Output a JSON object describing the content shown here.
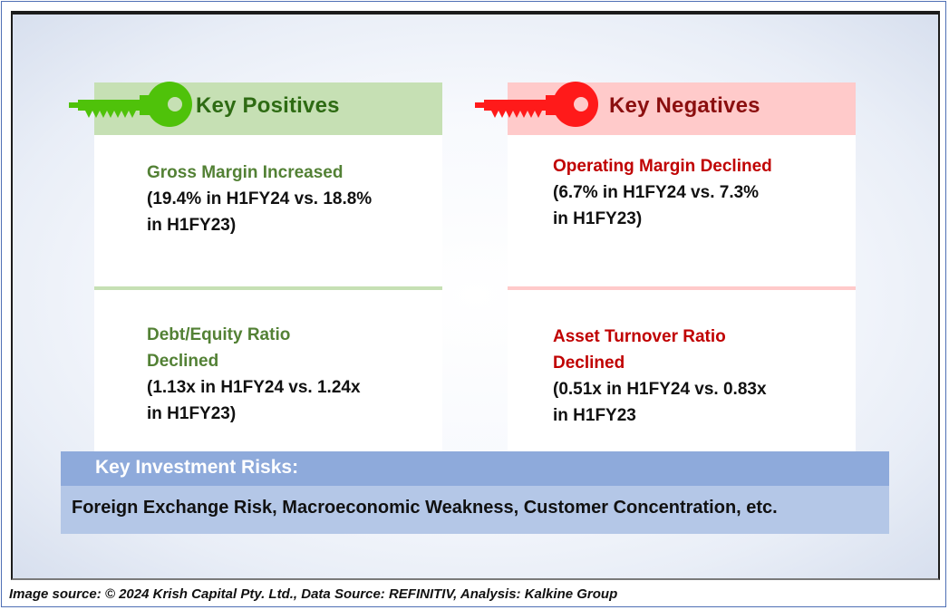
{
  "positives": {
    "header": "Key Positives",
    "header_color": "#c6e0b4",
    "key_color": "#4fc20a",
    "items": [
      {
        "title": "Gross Margin Increased",
        "detail_line1": "(19.4% in H1FY24 vs. 18.8%",
        "detail_line2": "in H1FY23)"
      },
      {
        "title_line1": "Debt/Equity Ratio",
        "title_line2": "Declined",
        "detail_line1": "(1.13x in H1FY24 vs. 1.24x",
        "detail_line2": "in H1FY23)"
      }
    ]
  },
  "negatives": {
    "header": "Key Negatives",
    "header_color": "#ffcaca",
    "key_color": "#ff1a1a",
    "items": [
      {
        "title": "Operating Margin Declined",
        "detail_line1": "(6.7% in H1FY24 vs. 7.3%",
        "detail_line2": "in H1FY23)"
      },
      {
        "title_line1": "Asset Turnover Ratio",
        "title_line2": "Declined",
        "detail_line1": "(0.51x in H1FY24 vs. 0.83x",
        "detail_line2": "in H1FY23"
      }
    ]
  },
  "risks": {
    "header": "Key Investment Risks:",
    "body": "Foreign Exchange Risk, Macroeconomic Weakness, Customer Concentration, etc."
  },
  "footer": {
    "source": "Image source: © 2024 Krish Capital Pty. Ltd., Data Source: REFINITIV, Analysis: Kalkine Group"
  },
  "icons": {
    "positive_key": "key-icon",
    "negative_key": "key-icon"
  }
}
